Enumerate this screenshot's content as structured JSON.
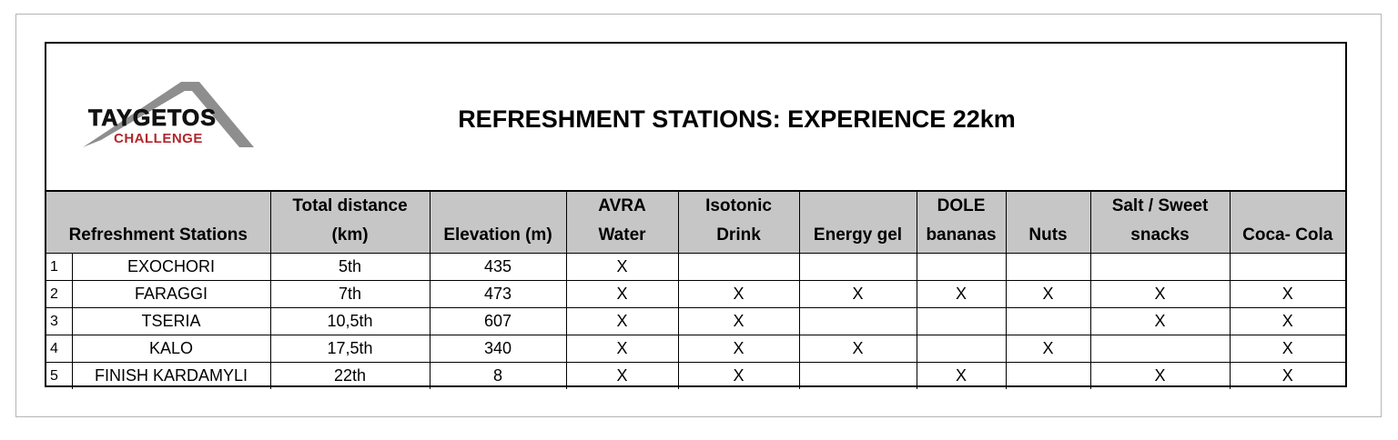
{
  "logo": {
    "name": "TAYGETOS",
    "tagline": "CHALLENGE"
  },
  "header": {
    "title": "REFRESHMENT STATIONS: EXPERIENCE 22km"
  },
  "table": {
    "columns": [
      [
        "Refreshment Stations"
      ],
      [
        "Total distance",
        "(km)"
      ],
      [
        "Elevation (m)"
      ],
      [
        "AVRA",
        "Water"
      ],
      [
        "Isotonic",
        "Drink"
      ],
      [
        "Energy gel"
      ],
      [
        "DOLE",
        "bananas"
      ],
      [
        "Nuts"
      ],
      [
        "Salt / Sweet",
        "snacks"
      ],
      [
        "Coca- Cola"
      ]
    ],
    "rows": [
      [
        "1",
        "EXOCHORI",
        "5th",
        "435",
        "X",
        null,
        null,
        null,
        null,
        null,
        null
      ],
      [
        "2",
        "FARAGGI",
        "7th",
        "473",
        "X",
        "X",
        "X",
        "X",
        "X",
        "X",
        "X"
      ],
      [
        "3",
        "TSERIA",
        "10,5th",
        "607",
        "X",
        "X",
        null,
        null,
        null,
        "X",
        "X"
      ],
      [
        "4",
        "KALO",
        "17,5th",
        "340",
        "X",
        "X",
        "X",
        null,
        "X",
        null,
        "X"
      ],
      [
        "5",
        "FINISH KARDAMYLI",
        "22th",
        "8",
        "X",
        "X",
        null,
        "X",
        null,
        "X",
        "X"
      ]
    ]
  }
}
